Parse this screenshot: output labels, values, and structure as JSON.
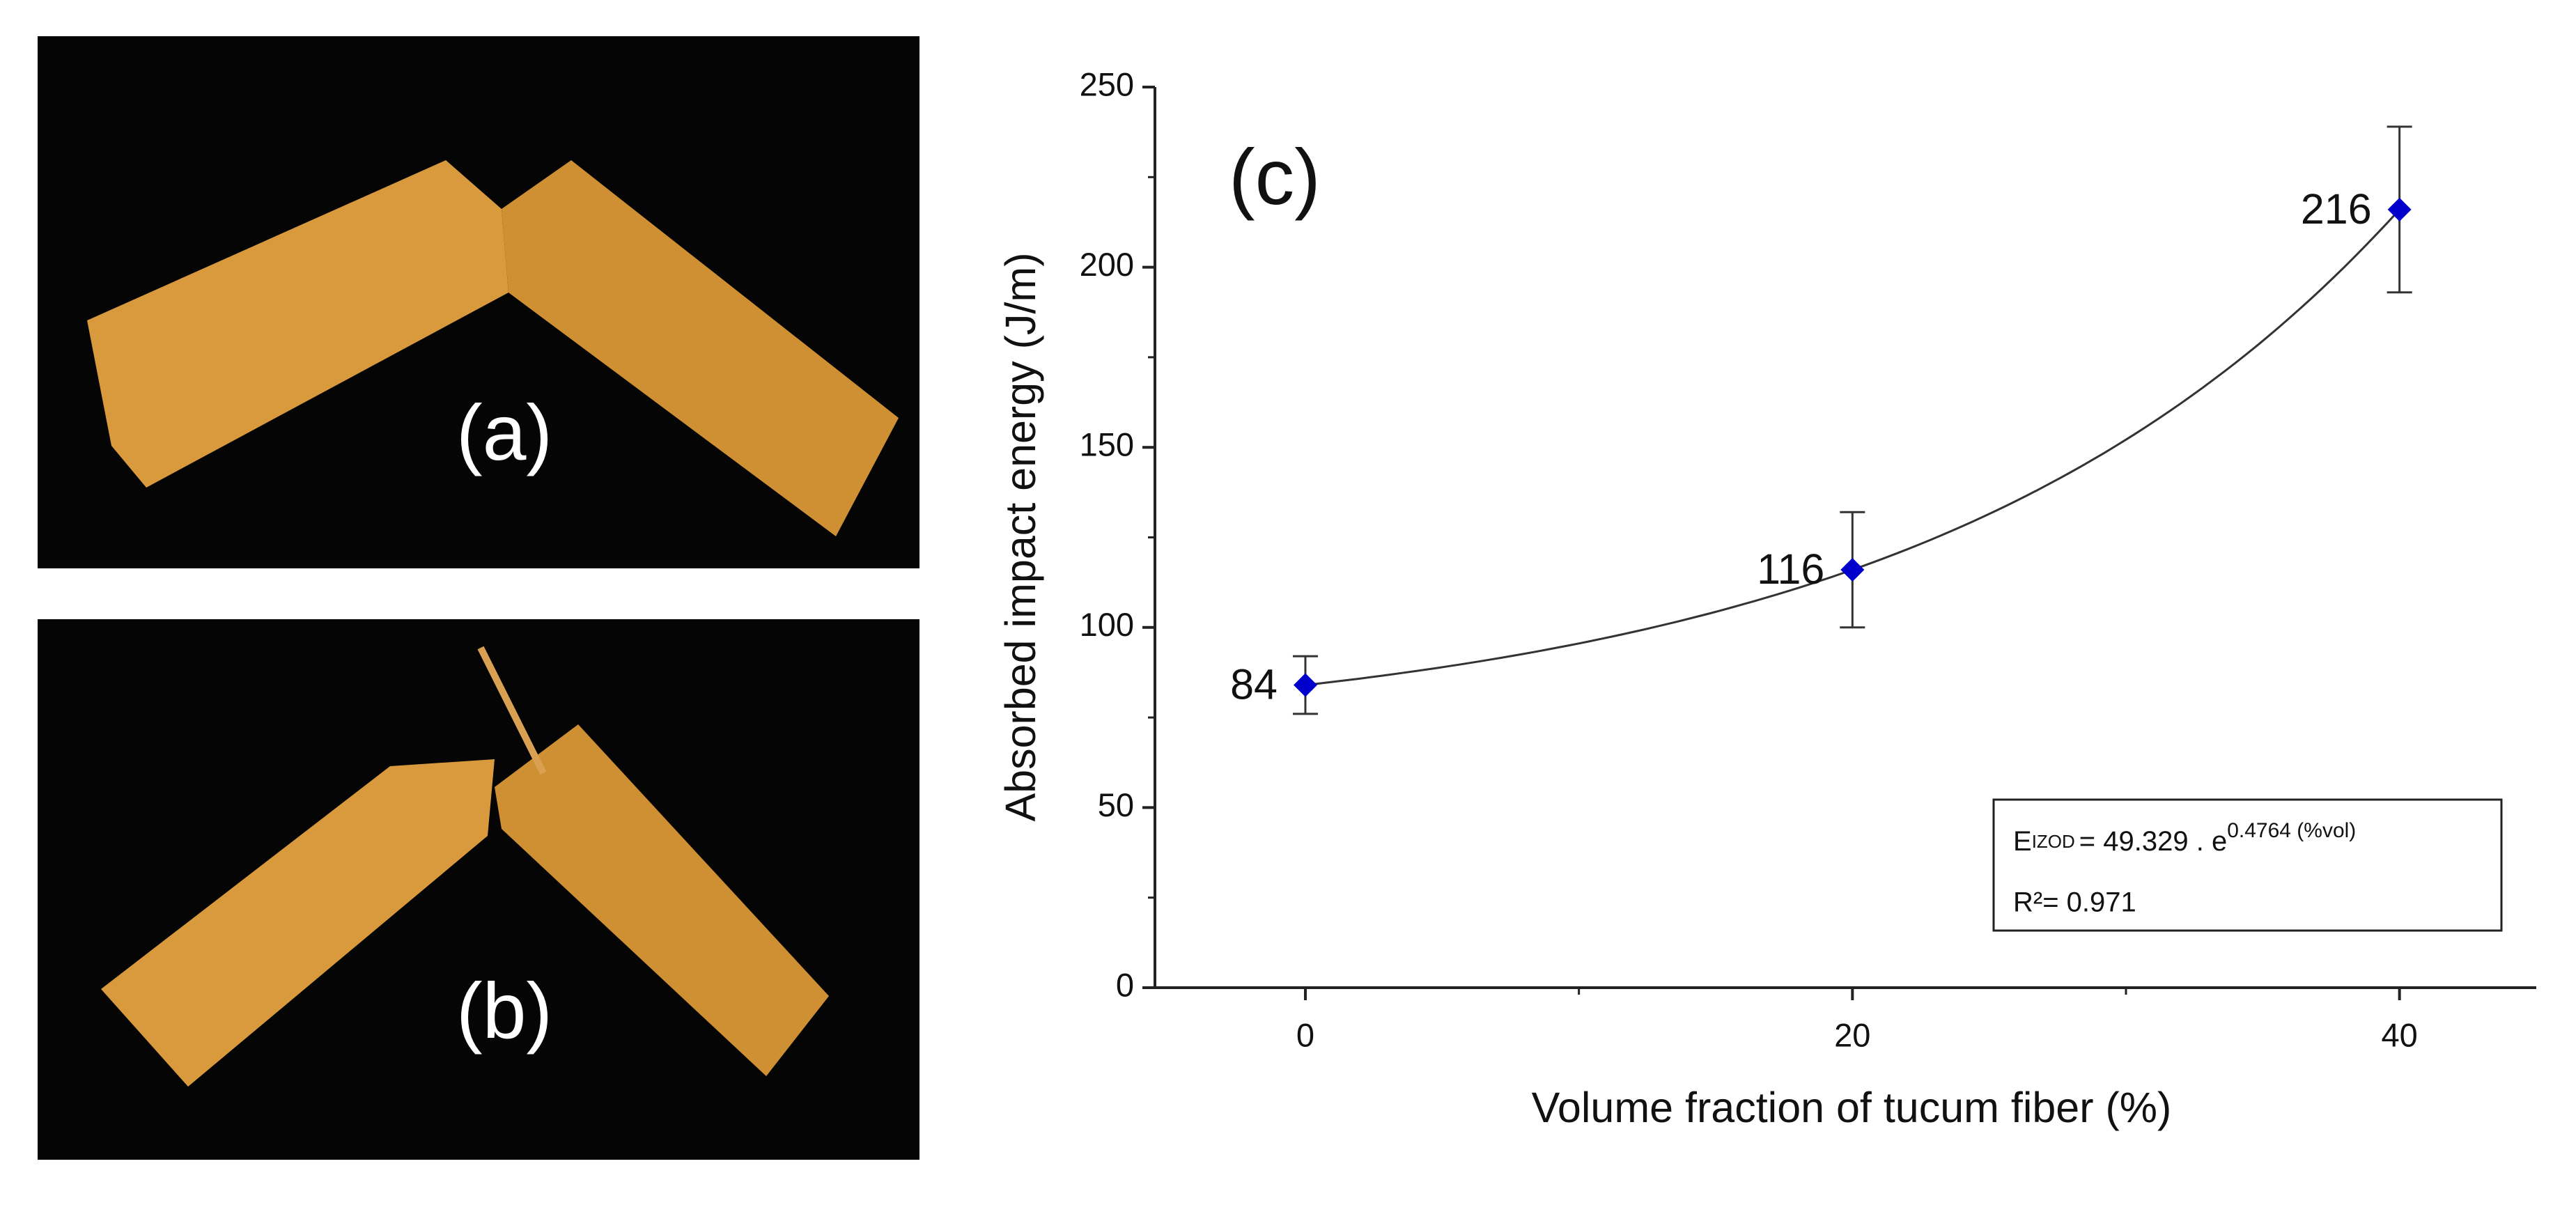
{
  "panels": {
    "a": "(a)",
    "b": "(b)"
  },
  "chart_data": {
    "type": "scatter",
    "panel_label": "(c)",
    "x_label": "Volume fraction of tucum fiber (%)",
    "y_label": "Absorbed impact energy (J/m)",
    "x": [
      0,
      20,
      40
    ],
    "values": [
      84,
      116,
      216
    ],
    "errors": [
      8,
      16,
      23
    ],
    "color": "#0000cc",
    "xlim": [
      -5.5,
      45
    ],
    "xticks": [
      0,
      20,
      40
    ],
    "xminorticks": [
      10,
      30
    ],
    "ylim": [
      0,
      250
    ],
    "yticks": [
      0,
      50,
      100,
      150,
      200,
      250
    ],
    "yminorticks": [
      25,
      75,
      125,
      175,
      225
    ],
    "fit_equation": {
      "lhs": "E",
      "subscript": "IZOD",
      "middle": "= 49.329 . e",
      "superscript": "0.4764 (%vol)"
    },
    "r_squared": "R²= 0.971"
  }
}
